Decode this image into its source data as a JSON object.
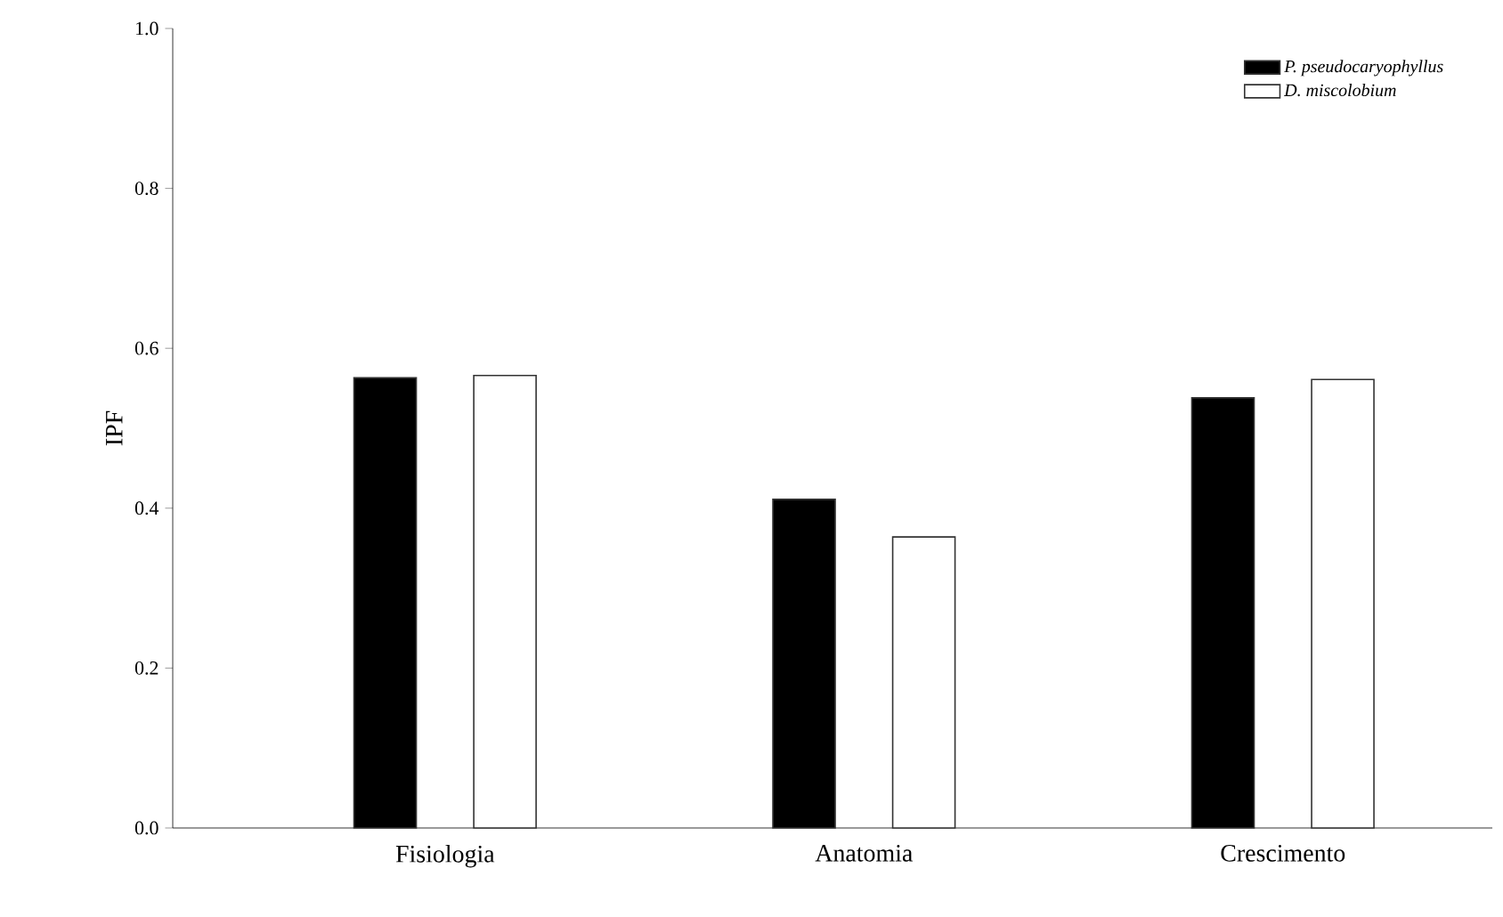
{
  "chart_data": {
    "type": "bar",
    "ylabel": "IPF",
    "categories": [
      "Fisiologia",
      "Anatomia",
      "Crescimento"
    ],
    "series": [
      {
        "name": "P. pseudocaryophyllus",
        "color": "#000000",
        "values": [
          0.563,
          0.411,
          0.538
        ]
      },
      {
        "name": "D. miscolobium",
        "color": "#ffffff",
        "values": [
          0.566,
          0.364,
          0.561
        ]
      }
    ],
    "ylim": [
      0,
      1
    ],
    "yticks": [
      {
        "value": 0,
        "label": "0.0"
      },
      0.2,
      0.4,
      0.6,
      0.8,
      {
        "value": 1,
        "label": "1.0"
      }
    ],
    "legend": "top right",
    "grid": false
  }
}
